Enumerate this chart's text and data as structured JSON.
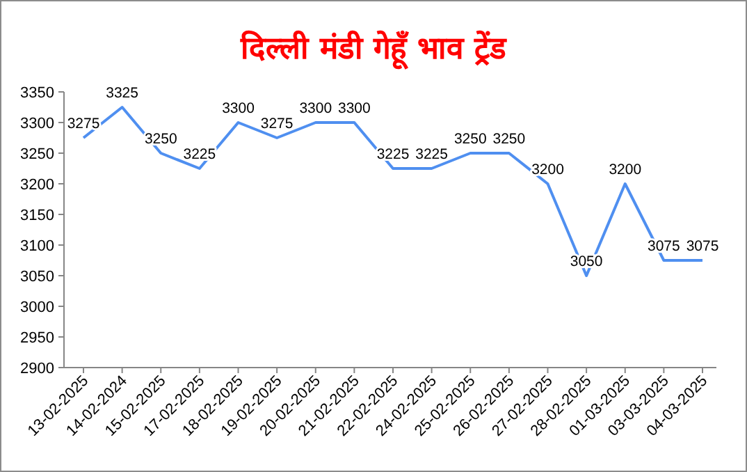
{
  "chart_data": {
    "type": "line",
    "title": "दिल्ली मंडी गेहूँ भाव ट्रेंड",
    "categories": [
      "13-02-2025",
      "14-02-2024",
      "15-02-2025",
      "17-02-2025",
      "18-02-2025",
      "19-02-2025",
      "20-02-2025",
      "21-02-2025",
      "22-02-2025",
      "24-02-2025",
      "25-02-2025",
      "26-02-2025",
      "27-02-2025",
      "28-02-2025",
      "01-03-2025",
      "03-03-2025",
      "04-03-2025"
    ],
    "series": [
      {
        "color": "#4f8ff0",
        "values": [
          3275,
          3325,
          3250,
          3225,
          3300,
          3275,
          3300,
          3300,
          3225,
          3225,
          3250,
          3250,
          3200,
          3050,
          3200,
          3075,
          3075
        ]
      }
    ],
    "ylim": [
      2900,
      3350
    ],
    "yticks": [
      2900,
      2950,
      3000,
      3050,
      3100,
      3150,
      3200,
      3250,
      3300,
      3350
    ],
    "grid": false,
    "marker": "none",
    "line_style": "solid",
    "data_labels": true
  }
}
